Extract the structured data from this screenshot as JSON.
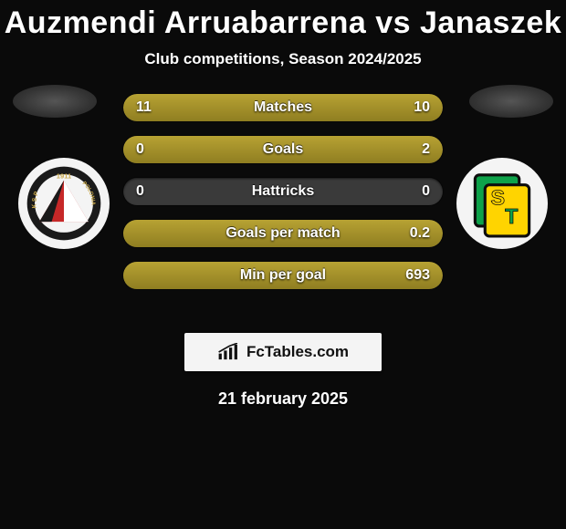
{
  "title": "Auzmendi Arruabarrena vs Janaszek",
  "subtitle": "Club competitions, Season 2024/2025",
  "date": "21 february 2025",
  "brand": "FcTables.com",
  "colors": {
    "background": "#0a0a0a",
    "bar_track": "#3a3a3a",
    "bar_fill_top": "#b7a233",
    "bar_fill_bottom": "#8f7e21",
    "text": "#ffffff",
    "brand_box_bg": "#f4f4f4",
    "brand_text": "#111111"
  },
  "bar_style": {
    "height": 30,
    "radius": 15,
    "gap": 16,
    "font_size": 16
  },
  "stats": [
    {
      "label": "Matches",
      "left_value": "11",
      "right_value": "10",
      "left_pct": 52,
      "right_pct": 48
    },
    {
      "label": "Goals",
      "left_value": "0",
      "right_value": "2",
      "left_pct": 0,
      "right_pct": 100
    },
    {
      "label": "Hattricks",
      "left_value": "0",
      "right_value": "0",
      "left_pct": 0,
      "right_pct": 0
    },
    {
      "label": "Goals per match",
      "left_value": "",
      "right_value": "0.2",
      "left_pct": 0,
      "right_pct": 100
    },
    {
      "label": "Min per goal",
      "left_value": "",
      "right_value": "693",
      "left_pct": 0,
      "right_pct": 100
    }
  ],
  "crest_left": {
    "ring": "#1a1a1a",
    "ring_text": "#c9a84a",
    "triangle_red": "#c62828",
    "triangle_white": "#ffffff",
    "triangle_black": "#1a1a1a"
  },
  "crest_right": {
    "green": "#0ea24a",
    "yellow": "#ffd400",
    "outline": "#0d0d0d"
  }
}
